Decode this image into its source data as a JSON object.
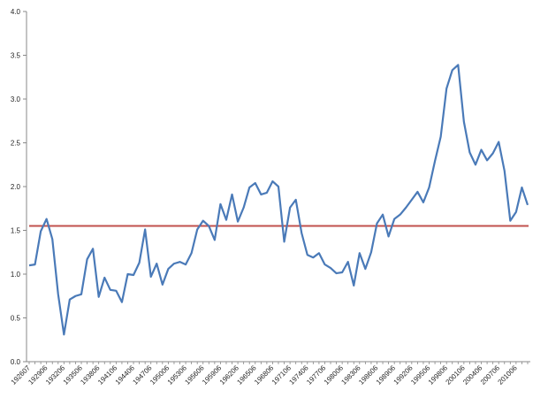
{
  "chart_data": {
    "type": "line",
    "title": "",
    "xlabel": "",
    "ylabel": "",
    "ylim": [
      0,
      4.0
    ],
    "yticks": [
      "0.0",
      "0.5",
      "1.0",
      "1.5",
      "2.0",
      "2.5",
      "3.0",
      "3.5",
      "4.0"
    ],
    "xtick_labels": [
      "192607",
      "192906",
      "193206",
      "193506",
      "193806",
      "194106",
      "194406",
      "194706",
      "195006",
      "195306",
      "195606",
      "195906",
      "196206",
      "196506",
      "196806",
      "197106",
      "197406",
      "197706",
      "198006",
      "198306",
      "198606",
      "198906",
      "199206",
      "199506",
      "199806",
      "200106",
      "200406",
      "200706",
      "201006"
    ],
    "x_start_year": 1926,
    "grid": false,
    "legend": "none",
    "colors": {
      "series": "#4a7ab8",
      "reference": "#c0504d",
      "axis": "#888888"
    },
    "reference_line": {
      "value": 1.55
    },
    "series": [
      {
        "values": [
          1.1,
          1.11,
          1.49,
          1.63,
          1.4,
          0.77,
          0.31,
          0.71,
          0.75,
          0.77,
          1.17,
          1.29,
          0.74,
          0.96,
          0.82,
          0.81,
          0.68,
          1.0,
          0.99,
          1.13,
          1.51,
          0.97,
          1.12,
          0.88,
          1.06,
          1.12,
          1.14,
          1.11,
          1.24,
          1.51,
          1.61,
          1.55,
          1.39,
          1.8,
          1.62,
          1.91,
          1.6,
          1.76,
          1.99,
          2.04,
          1.91,
          1.93,
          2.06,
          2.0,
          1.37,
          1.76,
          1.85,
          1.47,
          1.22,
          1.19,
          1.24,
          1.11,
          1.07,
          1.01,
          1.02,
          1.14,
          0.87,
          1.24,
          1.06,
          1.25,
          1.58,
          1.68,
          1.43,
          1.63,
          1.68,
          1.76,
          1.85,
          1.94,
          1.82,
          1.99,
          2.29,
          2.57,
          3.12,
          3.33,
          3.39,
          2.74,
          2.39,
          2.25,
          2.42,
          2.3,
          2.38,
          2.51,
          2.18,
          1.61,
          1.71,
          1.99,
          1.79
        ]
      }
    ]
  }
}
